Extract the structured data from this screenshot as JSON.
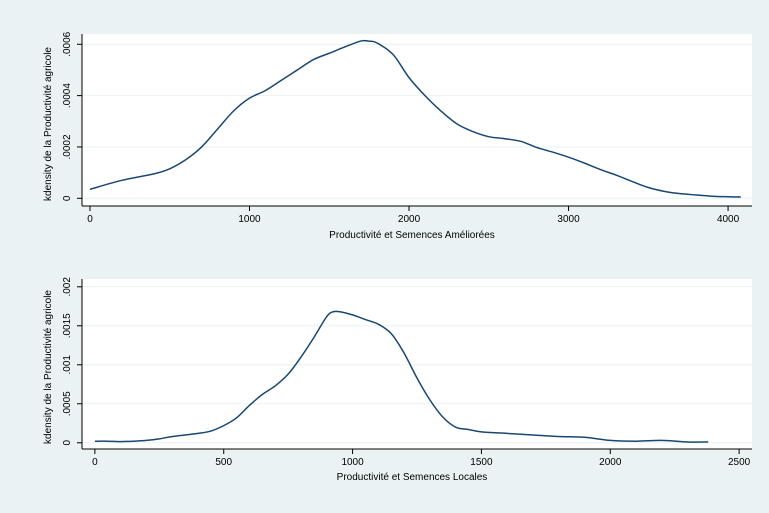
{
  "colors": {
    "outer_background": "#eaf2f3",
    "plot_background": "#ffffff",
    "grid": "#eaf2f3",
    "line": "#1a476f",
    "axis": "#000000"
  },
  "chart_data": [
    {
      "type": "line",
      "title": "",
      "xlabel": "Productivité et Semences Améliorées",
      "ylabel": "kdensity de la Productivité agricole",
      "xlim": [
        -50,
        4150
      ],
      "ylim": [
        -3e-05,
        0.00064
      ],
      "xticks": [
        0,
        1000,
        2000,
        3000,
        4000
      ],
      "xtick_labels": [
        "0",
        "1000",
        "2000",
        "3000",
        "4000"
      ],
      "yticks": [
        0,
        0.0002,
        0.0004,
        0.0006
      ],
      "ytick_labels": [
        "0",
        ".0002",
        ".0004",
        ".0006"
      ],
      "grid": true,
      "series": [
        {
          "x": [
            0,
            200,
            400,
            500,
            600,
            700,
            800,
            900,
            1000,
            1100,
            1200,
            1300,
            1400,
            1500,
            1600,
            1700,
            1750,
            1800,
            1900,
            2000,
            2100,
            2200,
            2300,
            2400,
            2500,
            2600,
            2700,
            2800,
            2900,
            3000,
            3100,
            3200,
            3300,
            3400,
            3500,
            3600,
            3700,
            3800,
            3900,
            4000,
            4080
          ],
          "y": [
            3.5e-05,
            7e-05,
            9.5e-05,
            0.000115,
            0.00015,
            0.0002,
            0.00027,
            0.00034,
            0.00039,
            0.00042,
            0.00046,
            0.0005,
            0.00054,
            0.000565,
            0.00059,
            0.000613,
            0.000612,
            0.000605,
            0.00056,
            0.00047,
            0.0004,
            0.00034,
            0.00029,
            0.00026,
            0.00024,
            0.000232,
            0.000222,
            0.000198,
            0.00018,
            0.00016,
            0.000137,
            0.000112,
            9e-05,
            6.5e-05,
            4.2e-05,
            2.7e-05,
            1.8e-05,
            1.3e-05,
            8e-06,
            6e-06,
            5e-06
          ]
        }
      ]
    },
    {
      "type": "line",
      "title": "",
      "xlabel": "Productivité et Semences Locales",
      "ylabel": "kdensity de la Productivité agricole",
      "xlim": [
        -50,
        2550
      ],
      "ylim": [
        -8e-05,
        0.0021
      ],
      "xticks": [
        0,
        500,
        1000,
        1500,
        2000,
        2500
      ],
      "xtick_labels": [
        "0",
        "500",
        "1000",
        "1500",
        "2000",
        "2500"
      ],
      "yticks": [
        0,
        0.0005,
        0.001,
        0.0015,
        0.002
      ],
      "ytick_labels": [
        "0",
        ".0005",
        ".001",
        ".0015",
        ".002"
      ],
      "grid": true,
      "series": [
        {
          "x": [
            0,
            50,
            100,
            150,
            200,
            250,
            300,
            350,
            400,
            450,
            500,
            550,
            600,
            650,
            700,
            750,
            800,
            850,
            900,
            925,
            950,
            1000,
            1050,
            1100,
            1150,
            1200,
            1250,
            1300,
            1350,
            1400,
            1450,
            1500,
            1600,
            1700,
            1800,
            1900,
            2000,
            2100,
            2200,
            2300,
            2380
          ],
          "y": [
            2e-05,
            2e-05,
            1.5e-05,
            2e-05,
            3e-05,
            5e-05,
            8e-05,
            0.0001,
            0.00012,
            0.00015,
            0.00022,
            0.00032,
            0.00048,
            0.00062,
            0.00073,
            0.00088,
            0.0011,
            0.00135,
            0.00162,
            0.00168,
            0.00168,
            0.00164,
            0.00158,
            0.00152,
            0.0014,
            0.00115,
            0.00083,
            0.00055,
            0.00033,
            0.0002,
            0.00017,
            0.00014,
            0.00012,
            0.0001,
            8e-05,
            7e-05,
            3e-05,
            2e-05,
            3e-05,
            1e-05,
            1e-05
          ]
        }
      ]
    }
  ]
}
